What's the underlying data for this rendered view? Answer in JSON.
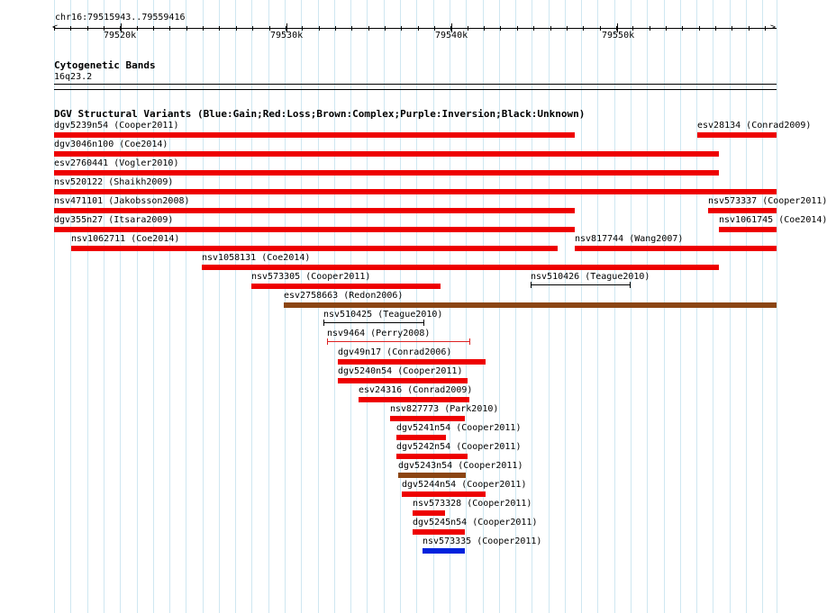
{
  "ruler": {
    "location": "chr16:79515943..79559416",
    "tick_labels": [
      "79520k",
      "79530k",
      "79540k",
      "79550k"
    ]
  },
  "cyto": {
    "title": "Cytogenetic Bands",
    "band": "16q23.2"
  },
  "dgv": {
    "title": "DGV Structural Variants (Blue:Gain;Red:Loss;Brown:Complex;Purple:Inversion;Black:Unknown)",
    "colors": {
      "loss": "#ee0000",
      "gain": "#0022dd",
      "complex": "#8b4513",
      "unknown": "#000000",
      "small_loss": "#dd2222"
    },
    "features": [
      {
        "label": "dgv5239n54 (Cooper2011)",
        "type": "loss"
      },
      {
        "label": "esv28134 (Conrad2009)",
        "type": "loss"
      },
      {
        "label": "dgv3046n100 (Coe2014)",
        "type": "loss"
      },
      {
        "label": "esv2760441 (Vogler2010)",
        "type": "loss"
      },
      {
        "label": "nsv520122 (Shaikh2009)",
        "type": "loss"
      },
      {
        "label": "nsv471101 (Jakobsson2008)",
        "type": "loss"
      },
      {
        "label": "nsv573337 (Cooper2011)",
        "type": "loss"
      },
      {
        "label": "dgv355n27 (Itsara2009)",
        "type": "loss"
      },
      {
        "label": "nsv1061745 (Coe2014)",
        "type": "loss"
      },
      {
        "label": "nsv1062711 (Coe2014)",
        "type": "loss"
      },
      {
        "label": "nsv817744 (Wang2007)",
        "type": "loss"
      },
      {
        "label": "nsv1058131 (Coe2014)",
        "type": "loss"
      },
      {
        "label": "nsv573305 (Cooper2011)",
        "type": "loss"
      },
      {
        "label": "nsv510426 (Teague2010)",
        "type": "unknown"
      },
      {
        "label": "esv2758663 (Redon2006)",
        "type": "complex"
      },
      {
        "label": "nsv510425 (Teague2010)",
        "type": "unknown"
      },
      {
        "label": "nsv9464 (Perry2008)",
        "type": "small_loss"
      },
      {
        "label": "dgv49n17 (Conrad2006)",
        "type": "loss"
      },
      {
        "label": "dgv5240n54 (Cooper2011)",
        "type": "loss"
      },
      {
        "label": "esv24316 (Conrad2009)",
        "type": "loss"
      },
      {
        "label": "nsv827773 (Park2010)",
        "type": "loss"
      },
      {
        "label": "dgv5241n54 (Cooper2011)",
        "type": "loss"
      },
      {
        "label": "dgv5242n54 (Cooper2011)",
        "type": "loss"
      },
      {
        "label": "dgv5243n54 (Cooper2011)",
        "type": "complex"
      },
      {
        "label": "dgv5244n54 (Cooper2011)",
        "type": "loss"
      },
      {
        "label": "nsv573328 (Cooper2011)",
        "type": "loss"
      },
      {
        "label": "dgv5245n54 (Cooper2011)",
        "type": "loss"
      },
      {
        "label": "nsv573335 (Cooper2011)",
        "type": "gain"
      }
    ]
  }
}
